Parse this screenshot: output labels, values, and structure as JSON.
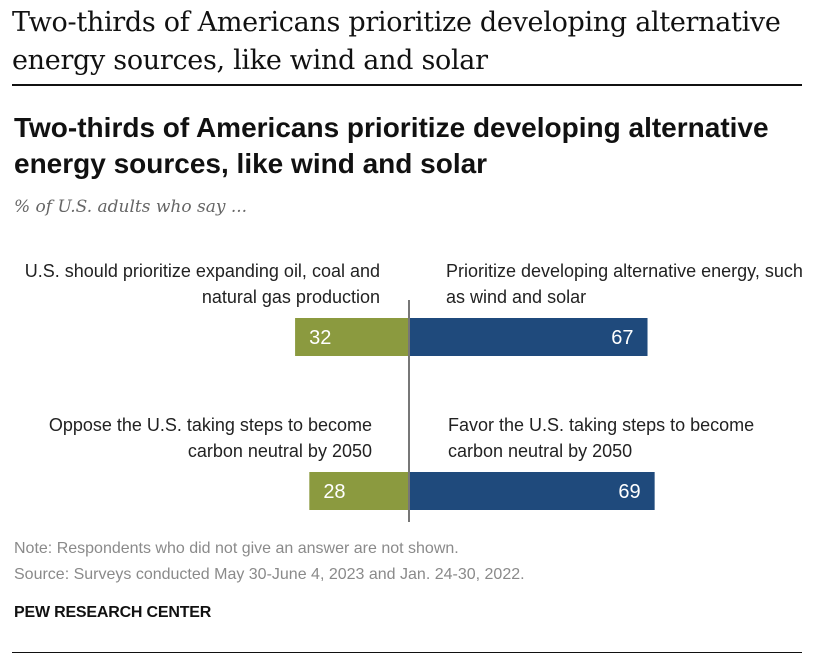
{
  "headline": "Two-thirds of Americans prioritize developing alternative energy sources, like wind and solar",
  "chart_data": {
    "type": "bar",
    "title": "Two-thirds of Americans prioritize developing alternative energy sources, like wind and solar",
    "subtitle": "% of U.S. adults who say ...",
    "layout": "diverging",
    "series": [
      {
        "color": "#8b9a3f",
        "values": [
          32,
          28
        ]
      },
      {
        "color": "#1f4a7c",
        "values": [
          67,
          69
        ]
      }
    ],
    "rows": [
      {
        "left_label": "U.S. should prioritize expanding oil, coal and natural gas production",
        "right_label": "Prioritize developing alternative energy, such as wind and solar",
        "left_value": 32,
        "right_value": 67
      },
      {
        "left_label": "Oppose the U.S. taking steps to become carbon neutral by 2050",
        "right_label": "Favor the U.S. taking steps to become carbon neutral by 2050",
        "left_value": 28,
        "right_value": 69
      }
    ],
    "value_labels_color": "#ffffff"
  },
  "note": "Note: Respondents who did not give an answer are not shown.",
  "source": "Source: Surveys conducted May 30-June 4, 2023 and Jan. 24-30, 2022.",
  "brand": "PEW RESEARCH CENTER"
}
